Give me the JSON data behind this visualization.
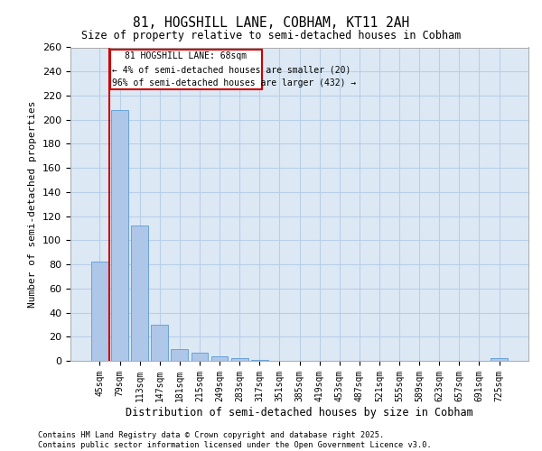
{
  "title1": "81, HOGSHILL LANE, COBHAM, KT11 2AH",
  "title2": "Size of property relative to semi-detached houses in Cobham",
  "xlabel": "Distribution of semi-detached houses by size in Cobham",
  "ylabel": "Number of semi-detached properties",
  "annotation_title": "81 HOGSHILL LANE: 68sqm",
  "annotation_line1": "← 4% of semi-detached houses are smaller (20)",
  "annotation_line2": "96% of semi-detached houses are larger (432) →",
  "footer1": "Contains HM Land Registry data © Crown copyright and database right 2025.",
  "footer2": "Contains public sector information licensed under the Open Government Licence v3.0.",
  "categories": [
    "45sqm",
    "79sqm",
    "113sqm",
    "147sqm",
    "181sqm",
    "215sqm",
    "249sqm",
    "283sqm",
    "317sqm",
    "351sqm",
    "385sqm",
    "419sqm",
    "453sqm",
    "487sqm",
    "521sqm",
    "555sqm",
    "589sqm",
    "623sqm",
    "657sqm",
    "691sqm",
    "725sqm"
  ],
  "values": [
    82,
    208,
    112,
    30,
    10,
    7,
    4,
    2,
    1,
    0,
    0,
    0,
    0,
    0,
    0,
    0,
    0,
    0,
    0,
    0,
    2
  ],
  "bar_color": "#aec6e8",
  "bar_edge_color": "#5b9bd5",
  "vline_color": "#cc0000",
  "annotation_box_color": "#cc0000",
  "background_color": "#dce9f5",
  "grid_color": "#b8cfe8",
  "ylim": [
    0,
    260
  ],
  "yticks": [
    0,
    20,
    40,
    60,
    80,
    100,
    120,
    140,
    160,
    180,
    200,
    220,
    240,
    260
  ]
}
